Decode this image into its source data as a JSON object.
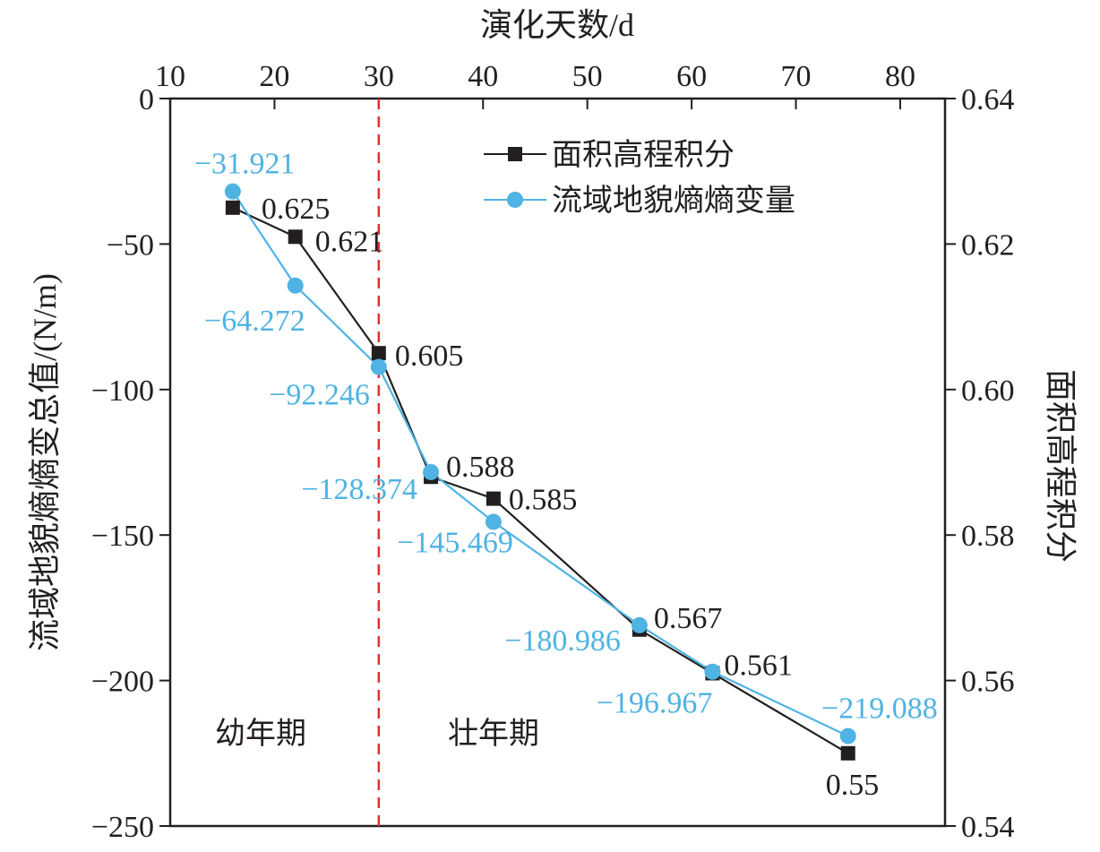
{
  "chart_data": {
    "type": "line",
    "xlabel": "演化天数/d",
    "ylabel_left": "流域地貌熵熵变总值/(N/m)",
    "ylabel_right": "面积高程积分",
    "xlim": [
      10,
      84.3
    ],
    "ylim_left": [
      -250,
      0
    ],
    "ylim_right": [
      0.54,
      0.64
    ],
    "x_ticks": [
      10,
      20,
      30,
      40,
      50,
      60,
      70,
      80
    ],
    "y_left_ticks": [
      0,
      -50,
      -100,
      -150,
      -200,
      -250
    ],
    "y_right_ticks": [
      "0.64",
      "0.62",
      "0.60",
      "0.58",
      "0.56",
      "0.54"
    ],
    "x": [
      16,
      22,
      30,
      35,
      41,
      55,
      62,
      75
    ],
    "series": [
      {
        "name": "面积高程积分",
        "axis": "right",
        "color": "#231f20",
        "marker": "square",
        "values": [
          0.625,
          0.621,
          0.605,
          0.588,
          0.585,
          0.567,
          0.561,
          0.55
        ],
        "labels": [
          "0.625",
          "0.621",
          "0.605",
          "0.588",
          "0.585",
          "0.567",
          "0.561",
          "0.55"
        ]
      },
      {
        "name": "流域地貌熵熵变量",
        "axis": "left",
        "color": "#4fb3e3",
        "marker": "circle",
        "values": [
          -31.921,
          -64.272,
          -92.246,
          -128.374,
          -145.469,
          -180.986,
          -196.967,
          -219.088
        ],
        "labels": [
          "−31.921",
          "−64.272",
          "−92.246",
          "−128.374",
          "−145.469",
          "−180.986",
          "−196.967",
          "−219.088"
        ]
      }
    ],
    "divider": {
      "x": 30,
      "color": "#e03030",
      "style": "dashed"
    },
    "annotations": [
      "幼年期",
      "壮年期"
    ],
    "legend": "top-right",
    "grid": false
  }
}
